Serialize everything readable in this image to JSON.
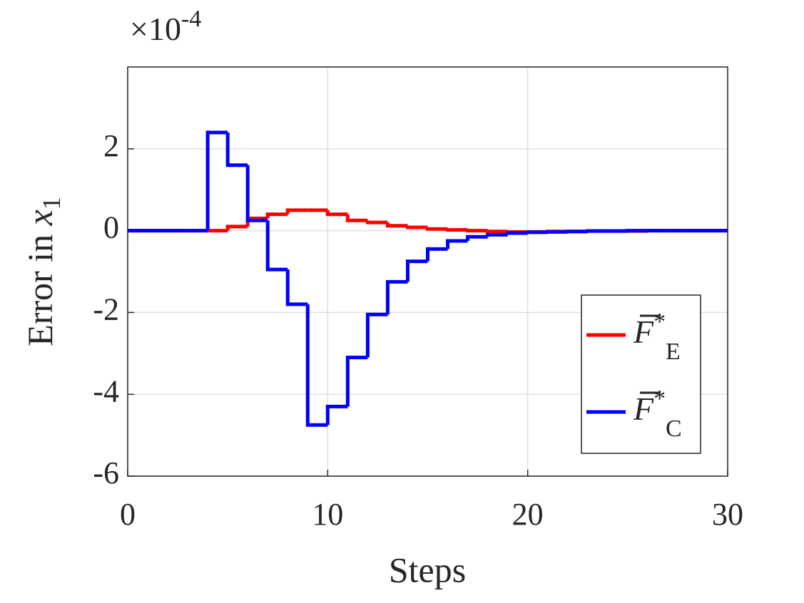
{
  "chart_data": {
    "type": "stairs",
    "multiplier_base": "×10",
    "multiplier_exponent": "-4",
    "xlabel": "Steps",
    "ylabel": "Error in ",
    "ylabel_var": "x",
    "ylabel_sub": "1",
    "x": [
      0,
      1,
      2,
      3,
      4,
      5,
      6,
      7,
      8,
      9,
      10,
      11,
      12,
      13,
      14,
      15,
      16,
      17,
      18,
      19,
      20,
      21,
      22,
      23,
      24,
      25,
      26,
      27,
      28,
      29,
      30
    ],
    "series": [
      {
        "name": "F",
        "name_sup": "*",
        "name_sub": "E",
        "color": "#ff0000",
        "values": [
          0,
          0,
          0,
          0,
          0,
          0.1,
          0.3,
          0.4,
          0.5,
          0.5,
          0.4,
          0.25,
          0.2,
          0.12,
          0.08,
          0.04,
          0.02,
          0,
          -0.02,
          -0.03,
          -0.03,
          -0.02,
          -0.02,
          -0.01,
          -0.01,
          -0.01,
          0,
          0,
          0,
          0,
          0
        ]
      },
      {
        "name": "F",
        "name_sup": "*",
        "name_sub": "C",
        "color": "#0000ff",
        "values": [
          0,
          0,
          0,
          0,
          2.4,
          1.6,
          0.25,
          -0.95,
          -1.8,
          -4.75,
          -4.3,
          -3.1,
          -2.05,
          -1.25,
          -0.75,
          -0.45,
          -0.25,
          -0.15,
          -0.1,
          -0.06,
          -0.04,
          -0.03,
          -0.02,
          -0.01,
          -0.01,
          0,
          0,
          0,
          0,
          0,
          0
        ]
      }
    ],
    "xlim": [
      0,
      30
    ],
    "xticks": [
      0,
      10,
      20,
      30
    ],
    "ylim": [
      -6,
      4
    ],
    "yticks": [
      -6,
      -4,
      -2,
      0,
      2
    ],
    "grid": true,
    "legend": "southeast"
  }
}
